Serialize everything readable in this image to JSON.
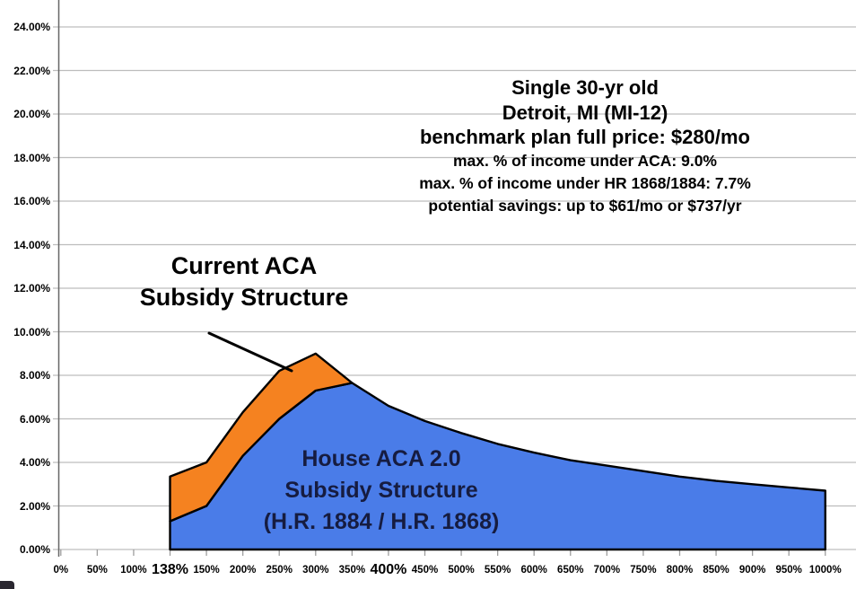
{
  "chart_data": {
    "type": "area",
    "title": "",
    "xlabel": "",
    "ylabel": "",
    "grid": true,
    "ylim": [
      0,
      24
    ],
    "y_ticks": [
      "0.00%",
      "2.00%",
      "4.00%",
      "6.00%",
      "8.00%",
      "10.00%",
      "12.00%",
      "14.00%",
      "16.00%",
      "18.00%",
      "20.00%",
      "22.00%",
      "24.00%"
    ],
    "categories": [
      "0%",
      "50%",
      "100%",
      "138%",
      "150%",
      "200%",
      "250%",
      "300%",
      "350%",
      "400%",
      "450%",
      "500%",
      "550%",
      "600%",
      "650%",
      "700%",
      "750%",
      "800%",
      "850%",
      "900%",
      "950%",
      "1000%"
    ],
    "emphasized_categories": [
      "138%",
      "400%"
    ],
    "x_axis_unit": "percent of federal poverty level",
    "y_axis_unit": "percent of income",
    "series": [
      {
        "name": "Current ACA Subsidy Structure",
        "color": "#F58220",
        "points": [
          [
            138,
            3.35
          ],
          [
            150,
            4.0
          ],
          [
            200,
            6.3
          ],
          [
            250,
            8.2
          ],
          [
            300,
            9.0
          ],
          [
            350,
            7.65
          ]
        ]
      },
      {
        "name": "House ACA 2.0 Subsidy Structure (H.R. 1884 / H.R. 1868)",
        "color": "#4A7CE8",
        "points": [
          [
            138,
            1.3
          ],
          [
            150,
            2.0
          ],
          [
            200,
            4.3
          ],
          [
            250,
            6.0
          ],
          [
            300,
            7.3
          ],
          [
            350,
            7.65
          ],
          [
            400,
            6.6
          ],
          [
            450,
            5.9
          ],
          [
            500,
            5.35
          ],
          [
            550,
            4.85
          ],
          [
            600,
            4.45
          ],
          [
            650,
            4.1
          ],
          [
            700,
            3.85
          ],
          [
            750,
            3.6
          ],
          [
            800,
            3.35
          ],
          [
            850,
            3.15
          ],
          [
            900,
            3.0
          ],
          [
            950,
            2.85
          ],
          [
            1000,
            2.7
          ]
        ]
      }
    ],
    "legend_position": "none"
  },
  "annotation": {
    "big_lines": [
      "Single 30-yr old",
      "Detroit, MI (MI-12)",
      "benchmark plan full price: $280/mo"
    ],
    "small_lines": [
      "max. % of income under ACA: 9.0%",
      "max. % of income under HR 1868/1884: 7.7%",
      "potential savings: up to $61/mo or $737/yr"
    ]
  },
  "callouts": {
    "current_aca_lines": [
      "Current ACA",
      "Subsidy Structure"
    ],
    "house_lines": [
      "House ACA 2.0",
      "Subsidy Structure",
      "(H.R. 1884 / H.R. 1868)"
    ]
  },
  "colors": {
    "orange_area": "#F58220",
    "blue_area": "#4A7CE8",
    "area_outline": "#000000",
    "gridline": "#bdbdbd",
    "axis_line": "#666666",
    "tick": "#9e9e9e",
    "annotation_text": "#000000",
    "house_text": "#161c40"
  }
}
